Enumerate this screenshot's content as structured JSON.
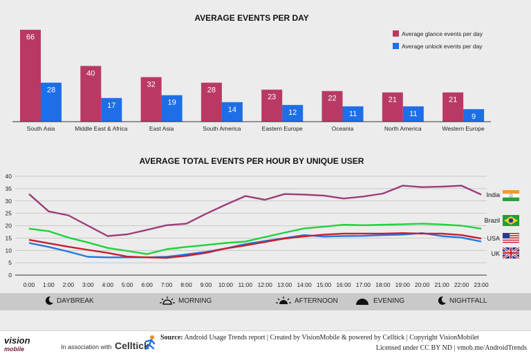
{
  "chart_data": [
    {
      "type": "bar",
      "title": "AVERAGE EVENTS PER DAY",
      "categories": [
        "South Asia",
        "Middle East & Africa",
        "East Asia",
        "South America",
        "Eastern Europe",
        "Oceania",
        "North America",
        "Western Europe"
      ],
      "series": [
        {
          "name": "Average glance events per day",
          "color": "#b83a64",
          "values": [
            66,
            40,
            32,
            28,
            23,
            22,
            21,
            21
          ]
        },
        {
          "name": "Average unlock events per day",
          "color": "#1e6ee8",
          "values": [
            28,
            17,
            19,
            14,
            12,
            11,
            11,
            9
          ]
        }
      ],
      "ylim": [
        0,
        70
      ],
      "legend": "top-right",
      "data_labels": true
    },
    {
      "type": "line",
      "title": "AVERAGE TOTAL EVENTS PER HOUR BY UNIQUE USER",
      "x": [
        "0:00",
        "1:00",
        "2:00",
        "3:00",
        "4:00",
        "5:00",
        "6:00",
        "7:00",
        "8:00",
        "9:00",
        "10:00",
        "11:00",
        "12:00",
        "13:00",
        "14:00",
        "15:00",
        "16:00",
        "17:00",
        "18:00",
        "19:00",
        "20:00",
        "21:00",
        "22:00",
        "23:00"
      ],
      "yticks": [
        0,
        5,
        10,
        15,
        20,
        25,
        30,
        35,
        40
      ],
      "ylim": [
        0,
        42
      ],
      "grid": true,
      "series": [
        {
          "name": "India",
          "color": "#9c3c7a",
          "values": [
            32.8,
            25.8,
            24.2,
            20.0,
            15.8,
            16.5,
            18.3,
            20.2,
            20.8,
            24.8,
            28.5,
            32.0,
            30.5,
            32.8,
            32.6,
            32.2,
            31.0,
            31.8,
            33.0,
            36.2,
            35.6,
            35.8,
            36.2,
            32.6
          ]
        },
        {
          "name": "Brazil",
          "color": "#1ed23c",
          "values": [
            18.8,
            17.8,
            15.2,
            13.2,
            11.0,
            9.8,
            8.5,
            10.5,
            11.4,
            12.2,
            13.0,
            13.6,
            15.4,
            17.2,
            18.9,
            19.6,
            20.4,
            20.2,
            20.4,
            20.6,
            20.8,
            20.5,
            20.0,
            18.8
          ]
        },
        {
          "name": "USA",
          "color": "#1f7ae0",
          "values": [
            13.0,
            11.4,
            9.5,
            7.4,
            7.2,
            7.2,
            7.2,
            7.4,
            8.4,
            9.4,
            10.8,
            12.6,
            13.8,
            15.0,
            16.2,
            15.6,
            15.8,
            15.9,
            16.2,
            16.4,
            17.0,
            15.8,
            15.2,
            13.6
          ]
        },
        {
          "name": "UK",
          "color": "#c81e2e",
          "values": [
            14.3,
            12.9,
            11.5,
            10.2,
            9.0,
            7.5,
            7.2,
            7.0,
            7.8,
            9.0,
            10.8,
            12.0,
            13.4,
            14.8,
            15.7,
            16.4,
            16.8,
            16.8,
            16.8,
            17.0,
            16.8,
            16.8,
            16.2,
            14.8
          ]
        }
      ]
    }
  ],
  "day_periods": [
    {
      "label": "DAYBREAK",
      "icon": "moon-icon"
    },
    {
      "label": "MORNING",
      "icon": "sunrise-icon"
    },
    {
      "label": "AFTERNOON",
      "icon": "sun-icon"
    },
    {
      "label": "EVENING",
      "icon": "sunset-icon"
    },
    {
      "label": "NIGHTFALL",
      "icon": "moon-icon"
    }
  ],
  "footer": {
    "brand": "vision",
    "brand_sub": "mobile",
    "association": "In association with",
    "partner": "Celltick",
    "source_label": "Source:",
    "source_text": "Android Usage Trends report  |  Created by VisionMobile & powered by Celltick  |  Copyright VisionMobilet",
    "license_text": "Licensed under CC BY ND  |  vmob.me/AndroidTrends"
  }
}
